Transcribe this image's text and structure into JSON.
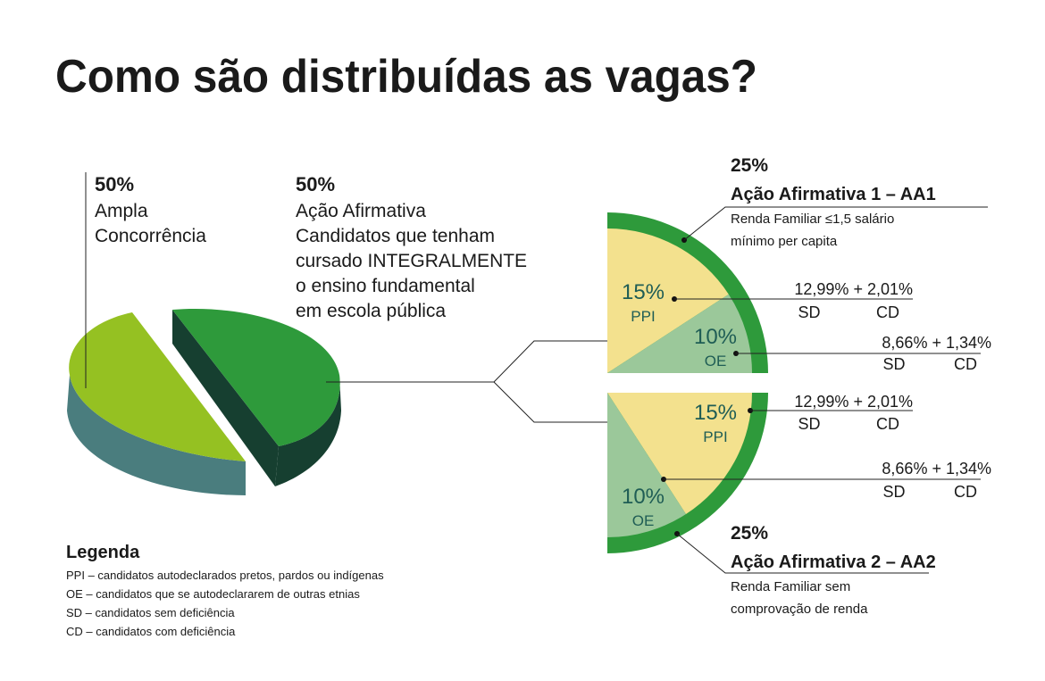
{
  "title": "Como são distribuídas as vagas?",
  "ampla": {
    "percent": "50%",
    "lines": [
      "Ampla",
      "Concorrência"
    ]
  },
  "afirmativa": {
    "percent": "50%",
    "lines": [
      "Ação Afirmativa",
      "Candidatos que tenham",
      "cursado INTEGRALMENTE",
      "o ensino fundamental",
      "em escola pública"
    ]
  },
  "aa1": {
    "percent": "25%",
    "title": "Ação Afirmativa 1 – AA1",
    "lines": [
      "Renda Familiar ≤1,5 salário",
      "mínimo per capita"
    ],
    "ppi": {
      "percent": "15%",
      "label": "PPI",
      "split": "12,99% + 2,01%",
      "sd": "SD",
      "cd": "CD"
    },
    "oe": {
      "percent": "10%",
      "label": "OE",
      "split": "8,66% + 1,34%",
      "sd": "SD",
      "cd": "CD"
    }
  },
  "aa2": {
    "percent": "25%",
    "title": "Ação Afirmativa 2 – AA2",
    "lines": [
      "Renda Familiar sem",
      "comprovação de renda"
    ],
    "ppi": {
      "percent": "15%",
      "label": "PPI",
      "split": "12,99% + 2,01%",
      "sd": "SD",
      "cd": "CD"
    },
    "oe": {
      "percent": "10%",
      "label": "OE",
      "split": "8,66% + 1,34%",
      "sd": "SD",
      "cd": "CD"
    }
  },
  "legend": {
    "title": "Legenda",
    "items": [
      "PPI – candidatos autodeclarados pretos, pardos ou indígenas",
      "OE – candidatos que se autodeclararem de outras etnias",
      "SD – candidatos sem deficiência",
      "CD – candidatos com deficiência"
    ]
  }
}
